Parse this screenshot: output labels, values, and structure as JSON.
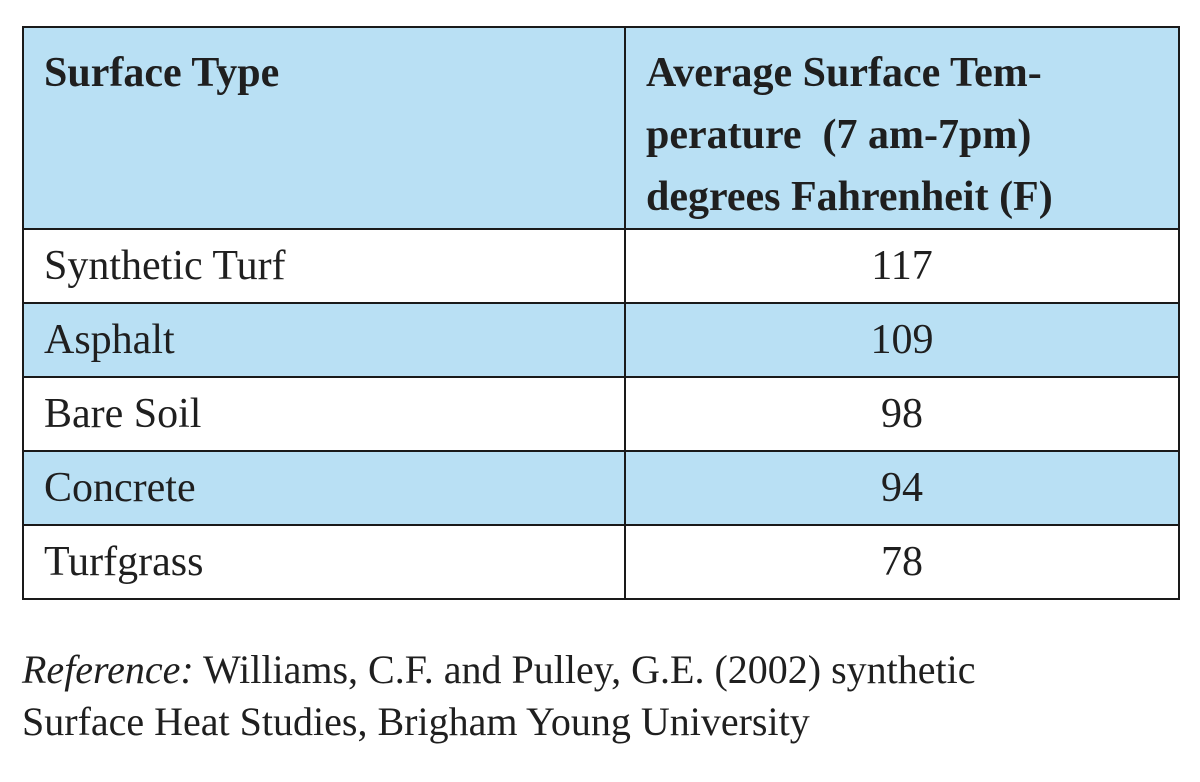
{
  "table": {
    "headers": [
      "Surface Type",
      "Average Surface Tem-perature  (7 am-7pm) degrees Fahrenheit (F)"
    ],
    "header_lines": {
      "col2_line1": "Average Surface Tem-",
      "col2_line2": "perature  (7 am-7pm)",
      "col2_line3": "degrees Fahrenheit (F)"
    },
    "rows": [
      {
        "surface": "Synthetic Turf",
        "temp": "117"
      },
      {
        "surface": "Asphalt",
        "temp": "109"
      },
      {
        "surface": "Bare Soil",
        "temp": "98"
      },
      {
        "surface": "Concrete",
        "temp": "94"
      },
      {
        "surface": "Turfgrass",
        "temp": "78"
      }
    ],
    "header_color": "#b9e0f4",
    "stripe_color": "#b9e0f4"
  },
  "reference": {
    "label": "Reference:",
    "text_line1": " Williams, C.F. and Pulley, G.E. (2002) synthetic",
    "text_line2": "Surface Heat Studies, Brigham Young University"
  }
}
